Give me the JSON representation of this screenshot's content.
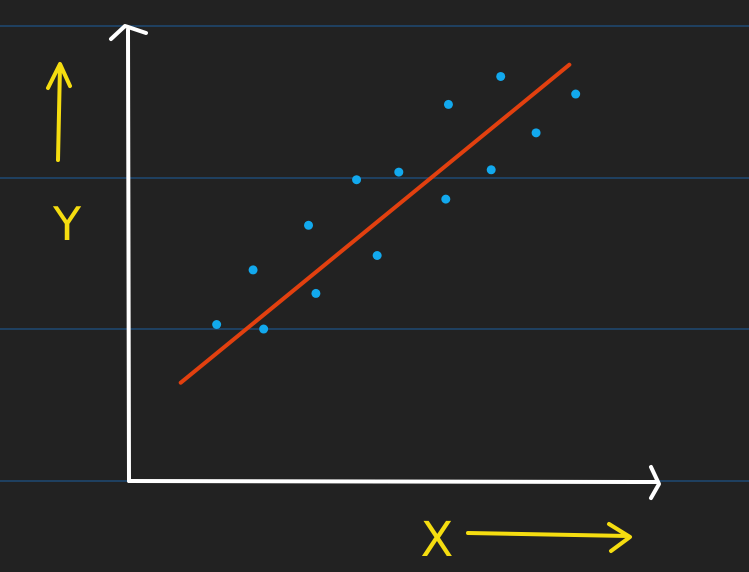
{
  "chart_data": {
    "type": "scatter",
    "title": "",
    "xlabel": "X",
    "ylabel": "Y",
    "xlim": [
      0,
      10
    ],
    "ylim": [
      0,
      10
    ],
    "grid": false,
    "series": [
      {
        "points": [
          {
            "x": 1.66,
            "y": 3.47
          },
          {
            "x": 2.35,
            "y": 4.68
          },
          {
            "x": 2.55,
            "y": 3.37
          },
          {
            "x": 3.4,
            "y": 5.67
          },
          {
            "x": 3.54,
            "y": 4.16
          },
          {
            "x": 4.31,
            "y": 6.68
          },
          {
            "x": 4.7,
            "y": 5.0
          },
          {
            "x": 5.11,
            "y": 6.85
          },
          {
            "x": 6.0,
            "y": 6.25
          },
          {
            "x": 6.05,
            "y": 8.35
          },
          {
            "x": 6.86,
            "y": 6.9
          },
          {
            "x": 7.04,
            "y": 8.97
          },
          {
            "x": 7.71,
            "y": 7.72
          },
          {
            "x": 8.46,
            "y": 8.58
          }
        ]
      }
    ],
    "trend_line": {
      "x": [
        0.98,
        8.34
      ],
      "y": [
        2.18,
        9.23
      ]
    },
    "colors": {
      "background": "#222222",
      "axes": "#ffffff",
      "points": "#12a9ee",
      "trend": "#e2400f",
      "annotations": "#f5dd10",
      "guides": "#1e4a74"
    }
  }
}
